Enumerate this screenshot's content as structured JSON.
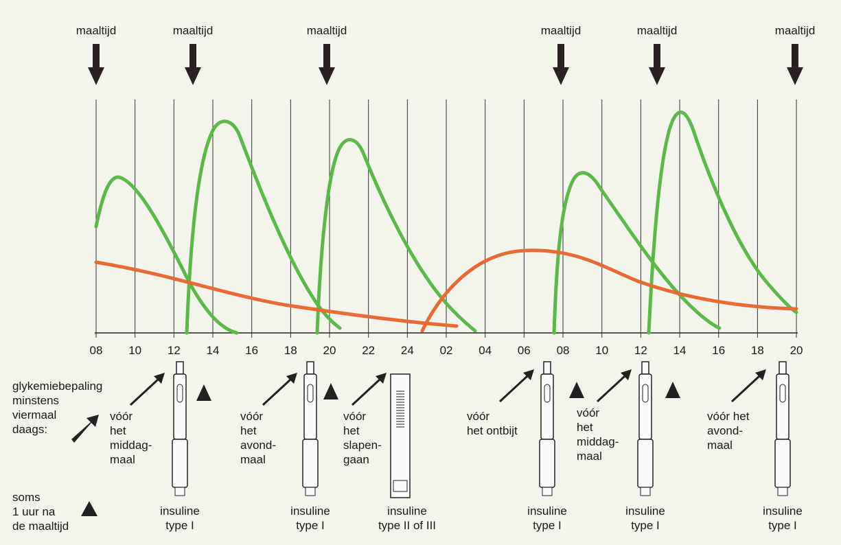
{
  "meals": [
    "maaltijd",
    "maaltijd",
    "maaltijd",
    "maaltijd",
    "maaltijd",
    "maaltijd"
  ],
  "time_axis": [
    "08",
    "10",
    "12",
    "14",
    "16",
    "18",
    "20",
    "22",
    "24",
    "02",
    "04",
    "06",
    "08",
    "10",
    "12",
    "14",
    "16",
    "18",
    "20"
  ],
  "legend": {
    "measurement": [
      "glykemiebepaling",
      "minstens",
      "viermaal",
      "daags:"
    ],
    "sometimes": [
      "soms",
      "1 uur na",
      "de maaltijd"
    ]
  },
  "tests": [
    {
      "lines": [
        "vóór",
        "het",
        "middag-",
        "maal"
      ]
    },
    {
      "lines": [
        "vóór",
        "het",
        "avond-",
        "maal"
      ]
    },
    {
      "lines": [
        "vóór",
        "het",
        "slapen-",
        "gaan"
      ]
    },
    {
      "lines": [
        "vóór",
        "het ontbijt"
      ]
    },
    {
      "lines": [
        "vóór",
        "het",
        "middag-",
        "maal"
      ]
    },
    {
      "lines": [
        "vóór het",
        "avond-",
        "maal"
      ]
    }
  ],
  "pens": [
    {
      "lines": [
        "insuline",
        "type I"
      ]
    },
    {
      "lines": [
        "insuline",
        "type I"
      ]
    },
    {
      "lines": [
        "insuline",
        "type II of III"
      ]
    },
    {
      "lines": [
        "insuline",
        "type I"
      ]
    },
    {
      "lines": [
        "insuline",
        "type I"
      ]
    },
    {
      "lines": [
        "insuline",
        "type I"
      ]
    }
  ]
}
